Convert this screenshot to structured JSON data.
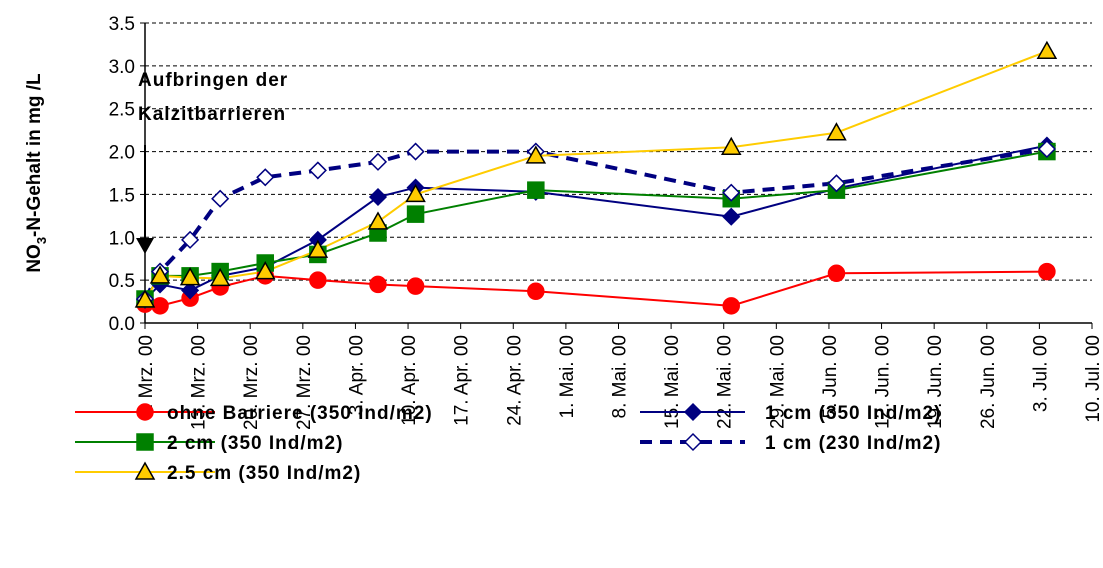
{
  "chart_data": {
    "type": "line",
    "ylabel": [
      "NO",
      "3",
      "-N-Gehalt in mg /L"
    ],
    "annotation": [
      "Aufbringen der",
      "Kalzitbarrieren"
    ],
    "x": [
      "2000-03-06",
      "2000-03-08",
      "2000-03-12",
      "2000-03-16",
      "2000-03-22",
      "2000-03-29",
      "2000-04-06",
      "2000-04-11",
      "2000-04-27",
      "2000-05-23",
      "2000-06-06",
      "2000-07-04"
    ],
    "xlim": [
      "2000-03-06",
      "2000-07-10"
    ],
    "xticks": [
      {
        "value": "2000-03-06",
        "label": "6. Mrz. 00"
      },
      {
        "value": "2000-03-13",
        "label": "13. Mrz. 00"
      },
      {
        "value": "2000-03-20",
        "label": "20. Mrz. 00"
      },
      {
        "value": "2000-03-27",
        "label": "27. Mrz. 00"
      },
      {
        "value": "2000-04-03",
        "label": "3. Apr. 00"
      },
      {
        "value": "2000-04-10",
        "label": "10. Apr. 00"
      },
      {
        "value": "2000-04-17",
        "label": "17. Apr. 00"
      },
      {
        "value": "2000-04-24",
        "label": "24. Apr. 00"
      },
      {
        "value": "2000-05-01",
        "label": "1. Mai. 00"
      },
      {
        "value": "2000-05-08",
        "label": "8. Mai. 00"
      },
      {
        "value": "2000-05-15",
        "label": "15. Mai. 00"
      },
      {
        "value": "2000-05-22",
        "label": "22. Mai. 00"
      },
      {
        "value": "2000-05-29",
        "label": "29. Mai. 00"
      },
      {
        "value": "2000-06-05",
        "label": "5. Jun. 00"
      },
      {
        "value": "2000-06-12",
        "label": "12. Jun. 00"
      },
      {
        "value": "2000-06-19",
        "label": "19. Jun. 00"
      },
      {
        "value": "2000-06-26",
        "label": "26. Jun. 00"
      },
      {
        "value": "2000-07-03",
        "label": "3. Jul. 00"
      },
      {
        "value": "2000-07-10",
        "label": "10. Jul. 00"
      }
    ],
    "ylim": [
      0,
      3.5
    ],
    "yticks": [
      {
        "value": 0,
        "label": "0.0"
      },
      0.5,
      {
        "value": 1,
        "label": "1.0"
      },
      1.5,
      {
        "value": 2,
        "label": "2.0"
      },
      2.5,
      {
        "value": 3,
        "label": "3.0"
      },
      3.5
    ],
    "grid": true,
    "series": [
      {
        "name": "ohne Barriere (350 Ind/m2)",
        "color": "#ff0000",
        "marker": "circle",
        "marker_fill": "#ff0000",
        "line_style": "solid",
        "values": [
          0.22,
          0.2,
          0.29,
          0.42,
          0.55,
          0.5,
          0.45,
          0.43,
          0.37,
          0.2,
          0.58,
          0.6
        ]
      },
      {
        "name": "1 cm (350 Ind/m2)",
        "color": "#000080",
        "marker": "diamond",
        "marker_fill": "#000080",
        "line_style": "solid",
        "values": [
          0.27,
          0.45,
          0.38,
          0.55,
          0.65,
          0.97,
          1.47,
          1.58,
          1.53,
          1.24,
          1.57,
          2.07
        ]
      },
      {
        "name": "2 cm (350 Ind/m2)",
        "color": "#008000",
        "marker": "square",
        "marker_fill": "#008000",
        "line_style": "solid",
        "values": [
          0.28,
          0.55,
          0.55,
          0.6,
          0.7,
          0.8,
          1.05,
          1.27,
          1.55,
          1.45,
          1.55,
          2.0
        ]
      },
      {
        "name": "1 cm (230 Ind/m2)",
        "color": "#000080",
        "marker": "diamond",
        "marker_fill": "#ffffff",
        "line_style": "dashed",
        "values": [
          0.28,
          0.6,
          0.97,
          1.45,
          1.7,
          1.78,
          1.88,
          2.0,
          2.0,
          1.52,
          1.63,
          2.03
        ]
      },
      {
        "name": "2.5 cm (350 Ind/m2)",
        "color": "#ffcc00",
        "marker": "triangle",
        "marker_fill": "#ffcc00",
        "line_style": "solid",
        "values": [
          0.27,
          0.55,
          0.53,
          0.52,
          0.6,
          0.85,
          1.18,
          1.5,
          1.95,
          2.05,
          2.22,
          3.17
        ]
      }
    ]
  }
}
